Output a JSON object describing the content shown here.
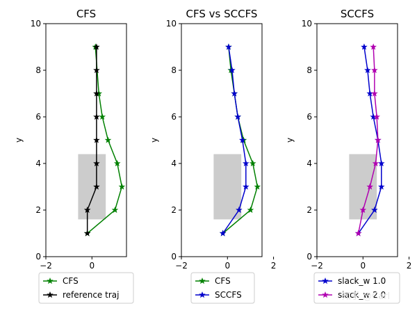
{
  "chart_data": [
    {
      "type": "line",
      "title": "CFS",
      "xlabel": "",
      "ylabel": "y",
      "xlim": [
        -2,
        1.5
      ],
      "ylim": [
        0,
        10
      ],
      "xticks": [
        "−2",
        "0"
      ],
      "yticks": [
        "0",
        "2",
        "4",
        "6",
        "8",
        "10"
      ],
      "obstacle": {
        "x": [
          -0.6,
          0.6
        ],
        "y": [
          1.6,
          4.4
        ]
      },
      "legend_position": "lower-center-outside",
      "series": [
        {
          "name": "CFS",
          "color": "#008000",
          "x": [
            -0.2,
            1.0,
            1.3,
            1.1,
            0.7,
            0.45,
            0.3,
            0.15
          ],
          "y": [
            1,
            2,
            3,
            4,
            5,
            6,
            7,
            9
          ]
        },
        {
          "name": "reference traj",
          "color": "#000000",
          "x": [
            -0.2,
            -0.2,
            0.2,
            0.2,
            0.2,
            0.2,
            0.2,
            0.2,
            0.2
          ],
          "y": [
            1,
            2,
            3,
            4,
            5,
            6,
            7,
            8,
            9
          ]
        }
      ]
    },
    {
      "type": "line",
      "title": "CFS vs SCCFS",
      "xlabel": "",
      "ylabel": "y",
      "xlim": [
        -2,
        1.5
      ],
      "ylim": [
        0,
        10
      ],
      "xticks": [
        "−2",
        "0",
        "2"
      ],
      "yticks": [
        "0",
        "2",
        "4",
        "6",
        "8",
        "10"
      ],
      "obstacle": {
        "x": [
          -0.6,
          0.6
        ],
        "y": [
          1.6,
          4.4
        ]
      },
      "legend_position": "lower-center-outside",
      "series": [
        {
          "name": "CFS",
          "color": "#008000",
          "x": [
            -0.2,
            1.0,
            1.3,
            1.1,
            0.7,
            0.45,
            0.3,
            0.15,
            0.05
          ],
          "y": [
            1,
            2,
            3,
            4,
            5,
            6,
            7,
            8,
            9
          ]
        },
        {
          "name": "SCCFS",
          "color": "#0000cc",
          "x": [
            -0.2,
            0.5,
            0.8,
            0.8,
            0.65,
            0.45,
            0.3,
            0.2,
            0.05
          ],
          "y": [
            1,
            2,
            3,
            4,
            5,
            6,
            7,
            8,
            9
          ]
        }
      ]
    },
    {
      "type": "line",
      "title": "SCCFS",
      "xlabel": "",
      "ylabel": "y",
      "xlim": [
        -2,
        1.5
      ],
      "ylim": [
        0,
        10
      ],
      "xticks": [
        "−2",
        "0",
        "2"
      ],
      "yticks": [
        "0",
        "2",
        "4",
        "6",
        "8",
        "10"
      ],
      "obstacle": {
        "x": [
          -0.6,
          0.6
        ],
        "y": [
          1.6,
          4.4
        ]
      },
      "legend_position": "lower-center-outside",
      "series": [
        {
          "name": "slack_w 1.0",
          "color": "#0000cc",
          "x": [
            -0.2,
            0.5,
            0.8,
            0.8,
            0.65,
            0.45,
            0.3,
            0.2,
            0.05
          ],
          "y": [
            1,
            2,
            3,
            4,
            5,
            6,
            7,
            8,
            9
          ]
        },
        {
          "name": "slack_w 2.0",
          "color": "#b000b0",
          "x": [
            -0.2,
            0.0,
            0.3,
            0.55,
            0.65,
            0.6,
            0.5,
            0.5,
            0.45
          ],
          "y": [
            1,
            2,
            3,
            4,
            5,
            6,
            7,
            8,
            9
          ]
        }
      ]
    }
  ],
  "watermark": "知乎 @Carl"
}
